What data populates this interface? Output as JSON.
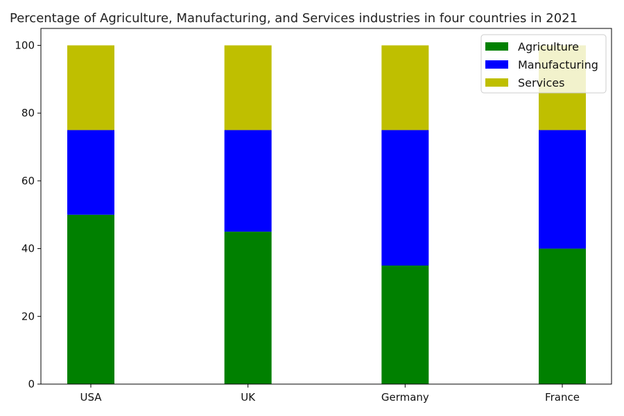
{
  "chart_data": {
    "type": "bar",
    "stacked": true,
    "title": "Percentage of Agriculture, Manufacturing, and Services industries in four countries in 2021",
    "xlabel": "",
    "ylabel": "",
    "categories": [
      "USA",
      "UK",
      "Germany",
      "France"
    ],
    "series": [
      {
        "name": "Agriculture",
        "values": [
          50,
          45,
          35,
          40
        ],
        "color": "#008000"
      },
      {
        "name": "Manufacturing",
        "values": [
          25,
          30,
          40,
          35
        ],
        "color": "#0000ff"
      },
      {
        "name": "Services",
        "values": [
          25,
          25,
          25,
          25
        ],
        "color": "#bfbf00"
      }
    ],
    "ylim": [
      0,
      105
    ],
    "yticks": [
      0,
      20,
      40,
      60,
      80,
      100
    ],
    "grid": false,
    "legend_position": "top-right"
  }
}
